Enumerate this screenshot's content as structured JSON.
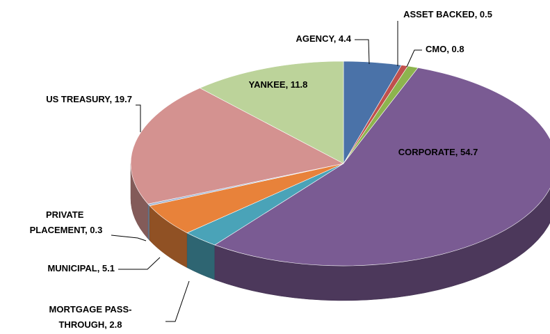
{
  "chart_data": {
    "type": "pie3d",
    "values": [
      4.4,
      0.5,
      0.8,
      54.7,
      2.8,
      5.1,
      0.3,
      19.7,
      11.8
    ],
    "value_labels": [
      "AGENCY, 4.4",
      "ASSET BACKED, 0.5",
      "CMO, 0.8",
      "CORPORATE, 54.7",
      "MORTGAGE PASS-THROUGH, 2.8",
      "MUNICIPAL, 5.1",
      "PRIVATE PLACEMENT, 0.3",
      "US TREASURY, 19.7",
      "YANKEE, 11.8"
    ],
    "colors": [
      "#4a72a8",
      "#c0504d",
      "#8db44e",
      "#7a5b93",
      "#4aa3b8",
      "#e8823a",
      "#a5b8d6",
      "#d49290",
      "#bcd39a"
    ]
  }
}
